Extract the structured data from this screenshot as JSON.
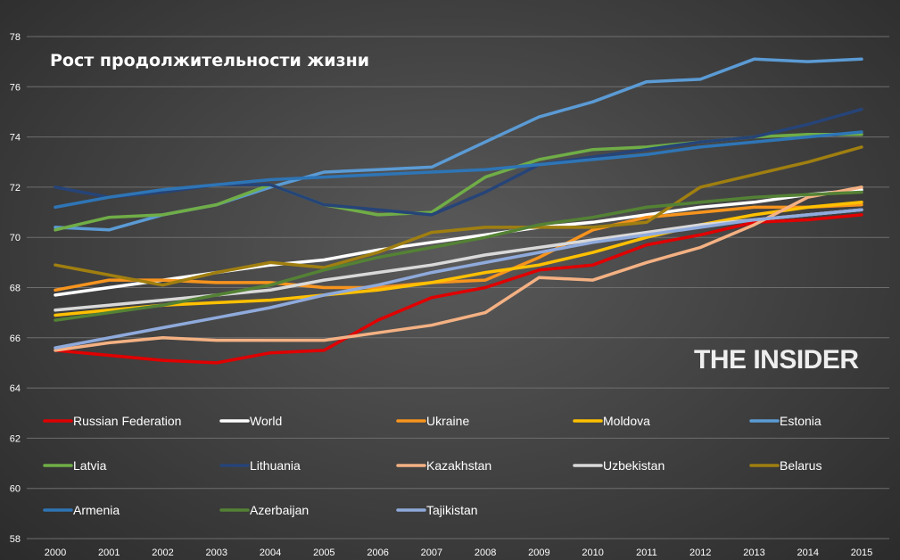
{
  "chart_data": {
    "type": "line",
    "title": "Рост продолжительности жизни",
    "watermark": "THE INSIDER",
    "x": [
      "2000",
      "2001",
      "2002",
      "2003",
      "2004",
      "2005",
      "2006",
      "2007",
      "2008",
      "2009",
      "2010",
      "2011",
      "2012",
      "2013",
      "2014",
      "2015"
    ],
    "yticks": [
      58,
      60,
      62,
      64,
      66,
      68,
      70,
      72,
      74,
      76,
      78
    ],
    "ylim": [
      58,
      78
    ],
    "grid": true,
    "legend_position": "bottom",
    "series": [
      {
        "name": "Russian Federation",
        "color": "#e00000",
        "values": [
          65.5,
          65.3,
          65.1,
          65.0,
          65.4,
          65.5,
          66.7,
          67.6,
          68.0,
          68.7,
          68.9,
          69.7,
          70.1,
          70.6,
          70.7,
          70.9
        ]
      },
      {
        "name": "World",
        "color": "#ffffff",
        "values": [
          67.7,
          68.0,
          68.3,
          68.6,
          68.9,
          69.1,
          69.5,
          69.8,
          70.1,
          70.4,
          70.6,
          70.9,
          71.2,
          71.4,
          71.7,
          71.9
        ]
      },
      {
        "name": "Ukraine",
        "color": "#f7941d",
        "values": [
          67.9,
          68.3,
          68.3,
          68.2,
          68.2,
          68.0,
          68.0,
          68.2,
          68.3,
          69.2,
          70.3,
          70.8,
          71.0,
          71.2,
          71.2,
          71.3
        ]
      },
      {
        "name": "Moldova",
        "color": "#ffc000",
        "values": [
          66.9,
          67.1,
          67.3,
          67.4,
          67.5,
          67.7,
          67.9,
          68.2,
          68.6,
          68.9,
          69.4,
          70.0,
          70.5,
          70.9,
          71.2,
          71.4
        ]
      },
      {
        "name": "Estonia",
        "color": "#5b9bd5",
        "values": [
          70.4,
          70.3,
          70.9,
          71.3,
          72.0,
          72.6,
          72.7,
          72.8,
          73.8,
          74.8,
          75.4,
          76.2,
          76.3,
          77.1,
          77.0,
          77.1
        ]
      },
      {
        "name": "Latvia",
        "color": "#70ad47",
        "values": [
          70.3,
          70.8,
          70.9,
          71.3,
          72.1,
          71.3,
          70.9,
          71.0,
          72.4,
          73.1,
          73.5,
          73.6,
          73.8,
          74.0,
          74.1,
          74.1
        ]
      },
      {
        "name": "Lithuania",
        "color": "#264478",
        "values": [
          72.0,
          71.6,
          71.8,
          72.1,
          72.1,
          71.3,
          71.1,
          70.9,
          71.8,
          72.9,
          73.2,
          73.5,
          73.8,
          74.0,
          74.5,
          75.1
        ]
      },
      {
        "name": "Kazakhstan",
        "color": "#f4b183",
        "values": [
          65.5,
          65.8,
          66.0,
          65.9,
          65.9,
          65.9,
          66.2,
          66.5,
          67.0,
          68.4,
          68.3,
          69.0,
          69.6,
          70.5,
          71.6,
          72.0
        ]
      },
      {
        "name": "Uzbekistan",
        "color": "#d9d9d9",
        "values": [
          67.1,
          67.3,
          67.5,
          67.7,
          67.9,
          68.3,
          68.6,
          68.9,
          69.3,
          69.6,
          69.9,
          70.2,
          70.5,
          70.7,
          70.9,
          71.1
        ]
      },
      {
        "name": "Belarus",
        "color": "#a07f10",
        "values": [
          68.9,
          68.5,
          68.1,
          68.6,
          69.0,
          68.8,
          69.4,
          70.2,
          70.4,
          70.4,
          70.4,
          70.6,
          72.0,
          72.5,
          73.0,
          73.6
        ]
      },
      {
        "name": "Armenia",
        "color": "#2e75b6",
        "values": [
          71.2,
          71.6,
          71.9,
          72.1,
          72.3,
          72.4,
          72.5,
          72.6,
          72.7,
          72.9,
          73.1,
          73.3,
          73.6,
          73.8,
          74.0,
          74.2
        ]
      },
      {
        "name": "Azerbaijan",
        "color": "#548235",
        "values": [
          66.7,
          67.0,
          67.3,
          67.7,
          68.1,
          68.7,
          69.2,
          69.6,
          70.0,
          70.5,
          70.8,
          71.2,
          71.4,
          71.6,
          71.7,
          71.8
        ]
      },
      {
        "name": "Tajikistan",
        "color": "#8faadc",
        "values": [
          65.6,
          66.0,
          66.4,
          66.8,
          67.2,
          67.7,
          68.1,
          68.6,
          69.0,
          69.4,
          69.8,
          70.1,
          70.4,
          70.7,
          70.9,
          71.1
        ]
      }
    ]
  }
}
